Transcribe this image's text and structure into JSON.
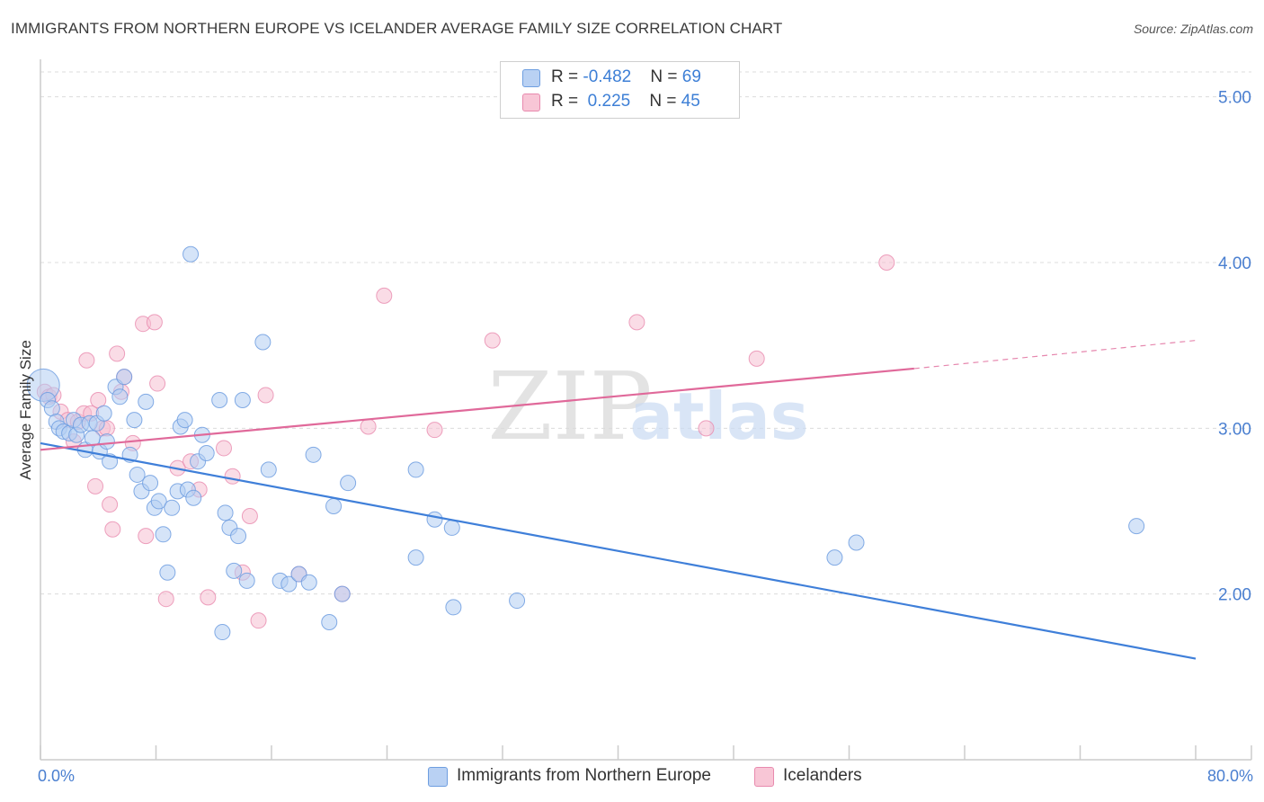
{
  "title": "IMMIGRANTS FROM NORTHERN EUROPE VS ICELANDER AVERAGE FAMILY SIZE CORRELATION CHART",
  "source": "Source: ZipAtlas.com",
  "watermark": {
    "zip": "ZIP",
    "atlas": "atlas"
  },
  "legend": {
    "blue": {
      "r_label": "R = ",
      "r_value": "-0.482",
      "n_label": "N = ",
      "n_value": "69"
    },
    "pink": {
      "r_label": "R = ",
      "r_value": " 0.225",
      "n_label": "N = ",
      "n_value": "45"
    }
  },
  "bottom_legend": {
    "blue": "Immigrants from Northern Europe",
    "pink": "Icelanders"
  },
  "colors": {
    "blue": "#3f7fd9",
    "pink": "#e0699a",
    "blue_fill": "#b3cdf2",
    "pink_fill": "#f6bfd1",
    "axis_text": "#4a7fd0"
  },
  "chart_data": {
    "type": "scatter",
    "title": "IMMIGRANTS FROM NORTHERN EUROPE VS ICELANDER AVERAGE FAMILY SIZE CORRELATION CHART",
    "xlabel": "",
    "ylabel": "Average Family Size",
    "xlim": [
      0,
      80
    ],
    "ylim": [
      1.0,
      5.15
    ],
    "x_tick_labels": [
      "0.0%",
      "80.0%"
    ],
    "y_ticks": [
      2.0,
      3.0,
      4.0,
      5.0
    ],
    "y_tick_labels": [
      "2.00",
      "3.00",
      "4.00",
      "5.00"
    ],
    "grid": true,
    "legend_position": "top-center",
    "series": [
      {
        "name": "Immigrants from Northern Europe",
        "color": "#3f7fd9",
        "r": -0.482,
        "n": 69,
        "trend": {
          "x0": 0,
          "y0": 2.91,
          "x1": 80,
          "y1": 1.61
        },
        "points": [
          [
            0.2,
            3.26
          ],
          [
            0.5,
            3.17
          ],
          [
            0.8,
            3.12
          ],
          [
            1.1,
            3.04
          ],
          [
            1.3,
            3.0
          ],
          [
            1.6,
            2.98
          ],
          [
            2.0,
            2.97
          ],
          [
            2.3,
            3.05
          ],
          [
            2.5,
            2.96
          ],
          [
            2.8,
            3.02
          ],
          [
            3.1,
            2.87
          ],
          [
            3.4,
            3.03
          ],
          [
            3.6,
            2.94
          ],
          [
            3.9,
            3.03
          ],
          [
            4.1,
            2.86
          ],
          [
            4.4,
            3.09
          ],
          [
            4.6,
            2.92
          ],
          [
            4.8,
            2.8
          ],
          [
            5.2,
            3.25
          ],
          [
            5.5,
            3.19
          ],
          [
            5.8,
            3.31
          ],
          [
            6.2,
            2.84
          ],
          [
            6.5,
            3.05
          ],
          [
            6.7,
            2.72
          ],
          [
            7.0,
            2.62
          ],
          [
            7.3,
            3.16
          ],
          [
            7.6,
            2.67
          ],
          [
            7.9,
            2.52
          ],
          [
            8.2,
            2.56
          ],
          [
            8.5,
            2.36
          ],
          [
            8.8,
            2.13
          ],
          [
            9.1,
            2.52
          ],
          [
            9.5,
            2.62
          ],
          [
            9.7,
            3.01
          ],
          [
            10.0,
            3.05
          ],
          [
            10.2,
            2.63
          ],
          [
            10.4,
            4.05
          ],
          [
            10.6,
            2.58
          ],
          [
            10.9,
            2.8
          ],
          [
            11.2,
            2.96
          ],
          [
            11.5,
            2.85
          ],
          [
            12.4,
            3.17
          ],
          [
            12.8,
            2.49
          ],
          [
            13.1,
            2.4
          ],
          [
            13.4,
            2.14
          ],
          [
            13.7,
            2.35
          ],
          [
            14.0,
            3.17
          ],
          [
            14.3,
            2.08
          ],
          [
            15.4,
            3.52
          ],
          [
            15.8,
            2.75
          ],
          [
            16.6,
            2.08
          ],
          [
            17.2,
            2.06
          ],
          [
            17.9,
            2.12
          ],
          [
            18.6,
            2.07
          ],
          [
            18.9,
            2.84
          ],
          [
            20.0,
            1.83
          ],
          [
            20.3,
            2.53
          ],
          [
            20.9,
            2.0
          ],
          [
            21.3,
            2.67
          ],
          [
            12.6,
            1.77
          ],
          [
            26.0,
            2.75
          ],
          [
            26.0,
            2.22
          ],
          [
            27.3,
            2.45
          ],
          [
            28.5,
            2.4
          ],
          [
            28.6,
            1.92
          ],
          [
            33.0,
            1.96
          ],
          [
            55.0,
            2.22
          ],
          [
            56.5,
            2.31
          ],
          [
            75.9,
            2.41
          ]
        ]
      },
      {
        "name": "Icelanders",
        "color": "#e0699a",
        "r": 0.225,
        "n": 45,
        "trend": {
          "x0": 0,
          "y0": 2.87,
          "x1": 60.5,
          "y1": 3.36,
          "dash_x1": 80,
          "dash_y1": 3.53
        },
        "points": [
          [
            0.3,
            3.22
          ],
          [
            0.6,
            3.19
          ],
          [
            0.9,
            3.2
          ],
          [
            1.4,
            3.1
          ],
          [
            1.9,
            3.05
          ],
          [
            2.3,
            2.92
          ],
          [
            2.6,
            3.04
          ],
          [
            3.0,
            3.09
          ],
          [
            3.2,
            3.41
          ],
          [
            3.5,
            3.09
          ],
          [
            3.8,
            2.65
          ],
          [
            4.0,
            3.17
          ],
          [
            4.3,
            3.0
          ],
          [
            4.6,
            3.0
          ],
          [
            4.8,
            2.54
          ],
          [
            5.0,
            2.39
          ],
          [
            5.3,
            3.45
          ],
          [
            5.8,
            3.31
          ],
          [
            6.4,
            2.91
          ],
          [
            7.1,
            3.63
          ],
          [
            7.3,
            2.35
          ],
          [
            7.9,
            3.64
          ],
          [
            8.1,
            3.27
          ],
          [
            8.7,
            1.97
          ],
          [
            9.5,
            2.76
          ],
          [
            10.4,
            2.8
          ],
          [
            11.0,
            2.63
          ],
          [
            11.6,
            1.98
          ],
          [
            12.7,
            2.88
          ],
          [
            13.3,
            2.71
          ],
          [
            14.0,
            2.13
          ],
          [
            14.5,
            2.47
          ],
          [
            15.1,
            1.84
          ],
          [
            15.6,
            3.2
          ],
          [
            17.9,
            2.12
          ],
          [
            20.9,
            2.0
          ],
          [
            22.7,
            3.01
          ],
          [
            23.8,
            3.8
          ],
          [
            27.3,
            2.99
          ],
          [
            31.3,
            3.53
          ],
          [
            41.3,
            3.64
          ],
          [
            46.1,
            3.0
          ],
          [
            49.6,
            3.42
          ],
          [
            58.6,
            4.0
          ],
          [
            5.6,
            3.22
          ]
        ]
      }
    ]
  }
}
